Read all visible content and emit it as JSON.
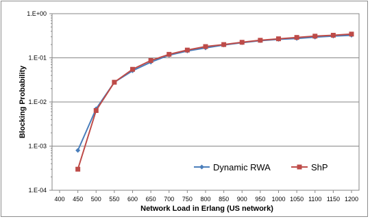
{
  "chart_data": {
    "type": "line",
    "xlabel": "Network Load in Erlang (US network)",
    "ylabel": "Blocking Probability",
    "yscale": "log",
    "ylim": [
      0.0001,
      1
    ],
    "xlim": [
      400,
      1200
    ],
    "x_ticks": [
      "400",
      "450",
      "500",
      "550",
      "600",
      "650",
      "700",
      "750",
      "800",
      "850",
      "900",
      "950",
      "1000",
      "1050",
      "1100",
      "1150",
      "1200"
    ],
    "y_ticks": [
      "1.E+00",
      "1.E-01",
      "1.E-02",
      "1.E-03",
      "1.E-04"
    ],
    "grid": "horizontal",
    "legend_position": "bottom-right",
    "series": [
      {
        "name": "Dynamic RWA",
        "color": "#4a7ebb",
        "marker": "diamond",
        "x": [
          450,
          500,
          550,
          600,
          650,
          700,
          750,
          800,
          850,
          900,
          950,
          1000,
          1050,
          1100,
          1150,
          1200
        ],
        "y": [
          0.0008,
          0.007,
          0.028,
          0.051,
          0.08,
          0.115,
          0.143,
          0.168,
          0.195,
          0.22,
          0.245,
          0.262,
          0.275,
          0.295,
          0.31,
          0.325
        ]
      },
      {
        "name": "ShP",
        "color": "#be4b48",
        "marker": "square",
        "x": [
          450,
          500,
          550,
          600,
          650,
          700,
          750,
          800,
          850,
          900,
          950,
          1000,
          1050,
          1100,
          1150,
          1200
        ],
        "y": [
          0.0003,
          0.0064,
          0.028,
          0.055,
          0.087,
          0.12,
          0.15,
          0.18,
          0.2,
          0.225,
          0.25,
          0.27,
          0.29,
          0.31,
          0.325,
          0.345
        ]
      }
    ]
  }
}
